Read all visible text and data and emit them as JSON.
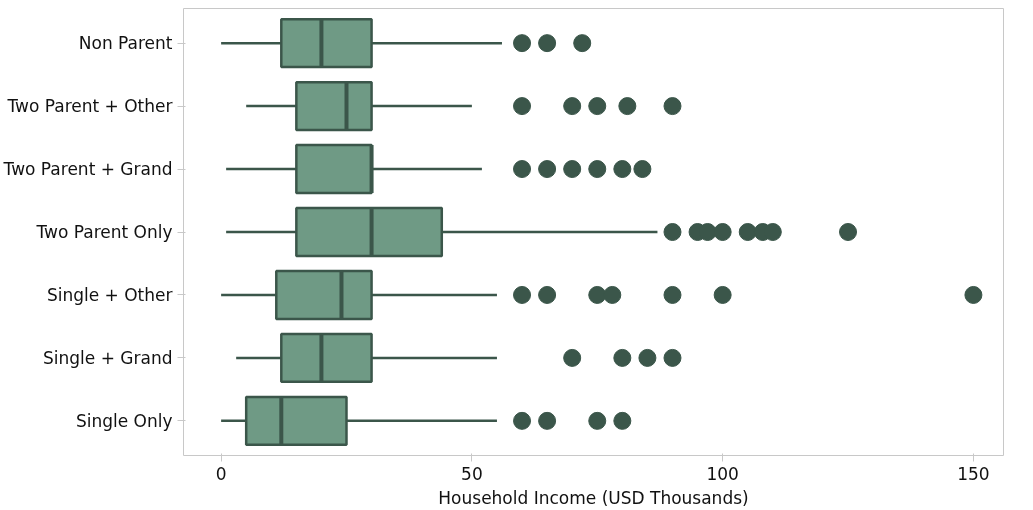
{
  "chart_data": {
    "type": "box",
    "orientation": "horizontal",
    "xlabel": "Household Income (USD Thousands)",
    "categories": [
      "Non Parent",
      "Two Parent + Other",
      "Two Parent + Grand",
      "Two Parent Only",
      "Single + Other",
      "Single + Grand",
      "Single Only"
    ],
    "boxes": [
      {
        "low": 0,
        "q1": 12,
        "median": 20,
        "q3": 30,
        "high": 56,
        "outliers": [
          60,
          65,
          72
        ]
      },
      {
        "low": 5,
        "q1": 15,
        "median": 25,
        "q3": 30,
        "high": 50,
        "outliers": [
          60,
          70,
          75,
          81,
          90
        ]
      },
      {
        "low": 1,
        "q1": 15,
        "median": 30,
        "q3": 30,
        "high": 52,
        "outliers": [
          60,
          65,
          70,
          75,
          80,
          84
        ]
      },
      {
        "low": 1,
        "q1": 15,
        "median": 30,
        "q3": 44,
        "high": 87,
        "outliers": [
          90,
          95,
          97,
          100,
          105,
          108,
          110,
          125
        ]
      },
      {
        "low": 0,
        "q1": 11,
        "median": 24,
        "q3": 30,
        "high": 55,
        "outliers": [
          60,
          65,
          75,
          78,
          90,
          100,
          150
        ]
      },
      {
        "low": 3,
        "q1": 12,
        "median": 20,
        "q3": 30,
        "high": 55,
        "outliers": [
          70,
          80,
          85,
          90
        ]
      },
      {
        "low": 0,
        "q1": 5,
        "median": 12,
        "q3": 25,
        "high": 55,
        "outliers": [
          60,
          65,
          75,
          80
        ]
      }
    ],
    "color": "#6f9a85",
    "xlim": [
      -7.5,
      156
    ],
    "xticks": [
      0,
      50,
      100,
      150
    ],
    "grid": false
  }
}
